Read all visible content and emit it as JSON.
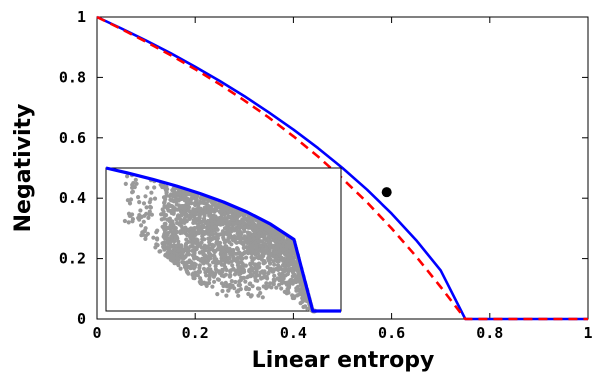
{
  "chart_data": [
    {
      "type": "line",
      "title": "",
      "xlabel": "Linear entropy",
      "ylabel": "Negativity",
      "xlim": [
        0,
        1
      ],
      "ylim": [
        0,
        1
      ],
      "x_ticks": [
        "0",
        "0.2",
        "0.4",
        "0.6",
        "0.8",
        "1"
      ],
      "y_ticks": [
        "0",
        "0.2",
        "0.4",
        "0.6",
        "0.8",
        "1"
      ],
      "grid": false,
      "legend": "none",
      "series": [
        {
          "style": "solid",
          "color": "#0000ff",
          "x": [
            0,
            0.05,
            0.1,
            0.15,
            0.2,
            0.25,
            0.3,
            0.35,
            0.4,
            0.45,
            0.5,
            0.55,
            0.6,
            0.65,
            0.7,
            0.75,
            0.8,
            0.85,
            0.889,
            1.0
          ],
          "y": [
            1.0,
            0.962,
            0.922,
            0.88,
            0.835,
            0.788,
            0.738,
            0.684,
            0.627,
            0.566,
            0.5,
            0.428,
            0.349,
            0.261,
            0.161,
            0.0,
            0.0,
            0.0,
            0.0,
            0.0
          ]
        },
        {
          "style": "dashed",
          "color": "#ff0000",
          "x": [
            0,
            0.05,
            0.1,
            0.15,
            0.2,
            0.25,
            0.3,
            0.35,
            0.4,
            0.45,
            0.5,
            0.55,
            0.6,
            0.65,
            0.7,
            0.75,
            0.8,
            0.85,
            0.889,
            1.0
          ],
          "y": [
            1.0,
            0.96,
            0.918,
            0.874,
            0.827,
            0.777,
            0.724,
            0.667,
            0.605,
            0.538,
            0.465,
            0.386,
            0.3,
            0.207,
            0.106,
            0.0,
            0.0,
            0.0,
            0.0,
            0.0
          ]
        }
      ],
      "marker_point": {
        "x": 0.59,
        "y": 0.42,
        "color": "#000000"
      }
    },
    {
      "type": "scatter",
      "role": "inset",
      "xlim": [
        0,
        0.5
      ],
      "ylim": [
        0,
        0.5
      ],
      "scatter_color": "#999999",
      "boundary_color": "#0000ff",
      "boundary": {
        "x": [
          0.0,
          0.05,
          0.1,
          0.15,
          0.2,
          0.25,
          0.3,
          0.35,
          0.4,
          0.44,
          0.5
        ],
        "y": [
          0.5,
          0.481,
          0.46,
          0.437,
          0.411,
          0.381,
          0.346,
          0.304,
          0.25,
          0.0,
          0.0
        ]
      }
    }
  ]
}
